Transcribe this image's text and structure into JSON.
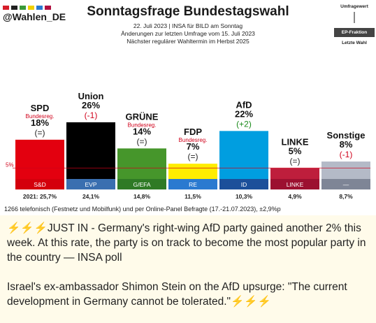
{
  "header": {
    "handle": "@Wahlen_DE",
    "title": "Sonntagsfrage Bundestagswahl",
    "subtitle_line1": "22. Juli 2023 | INSA für BILD am Sonntag",
    "subtitle_line2": "Änderungen zur letzten Umfrage vom 15. Juli 2023",
    "subtitle_line3": "Nächster regulärer Wahltermin im Herbst 2025",
    "legend_top": "Umfragewert",
    "legend_middle": "EP-Fraktion",
    "legend_bottom": "Letzte Wahl"
  },
  "brand_colors": [
    "#d61d2a",
    "#202020",
    "#3a9a3a",
    "#f0d000",
    "#2a7ad0",
    "#b01040"
  ],
  "chart_data": {
    "type": "bar",
    "threshold": 5,
    "threshold_label": "5%",
    "ylim": [
      0,
      30
    ],
    "parties": [
      {
        "name": "SPD",
        "note": "Bundesreg.",
        "value": 18,
        "value_label": "18%",
        "change": "(=)",
        "ep_group": "S&D",
        "last_label": "2021: 25,7%",
        "color": "#e3000f",
        "ep_color": "#d4000c",
        "change_color": "#222222"
      },
      {
        "name": "Union",
        "note": "",
        "value": 26,
        "value_label": "26%",
        "change": "(-1)",
        "ep_group": "EVP",
        "last_label": "24,1%",
        "color": "#000000",
        "ep_color": "#3a6fb0",
        "change_color": "#d0001a"
      },
      {
        "name": "GRÜNE",
        "note": "Bundesreg.",
        "value": 14,
        "value_label": "14%",
        "change": "(=)",
        "ep_group": "G/EFA",
        "last_label": "14,8%",
        "color": "#46962b",
        "ep_color": "#2f7a25",
        "change_color": "#222222"
      },
      {
        "name": "FDP",
        "note": "Bundesreg.",
        "value": 7,
        "value_label": "7%",
        "change": "(=)",
        "ep_group": "RE",
        "last_label": "11,5%",
        "color": "#ffed00",
        "ep_color": "#2a7ad0",
        "change_color": "#222222"
      },
      {
        "name": "AfD",
        "note": "",
        "value": 22,
        "value_label": "22%",
        "change": "(+2)",
        "ep_group": "ID",
        "last_label": "10,3%",
        "color": "#009ee0",
        "ep_color": "#1c4f9a",
        "change_color": "#1a8a1a"
      },
      {
        "name": "LINKE",
        "note": "",
        "value": 5,
        "value_label": "5%",
        "change": "(=)",
        "ep_group": "LINKE",
        "last_label": "4,9%",
        "color": "#be1e3c",
        "ep_color": "#9c1030",
        "change_color": "#222222"
      },
      {
        "name": "Sonstige",
        "note": "",
        "value": 8,
        "value_label": "8%",
        "change": "(-1)",
        "ep_group": "—",
        "last_label": "8,7%",
        "color": "#b4bac7",
        "ep_color": "#7e8596",
        "change_color": "#d0001a"
      }
    ]
  },
  "footnote": "1266 telefonisch (Festnetz und Mobilfunk) und per Online-Panel Befragte (17.-21.07.2023), ±2,9%p",
  "message": {
    "prefix_emoji": "⚡⚡⚡",
    "paragraph1": "JUST IN - Germany's right-wing AfD party gained another 2% this week. At this rate, the party is on track to become the most popular party in the country — INSA poll",
    "paragraph2": "Israel's ex-ambassador Shimon Stein on the AfD upsurge: \"The current development in Germany cannot be tolerated.\"",
    "suffix_emoji": "⚡⚡⚡"
  }
}
